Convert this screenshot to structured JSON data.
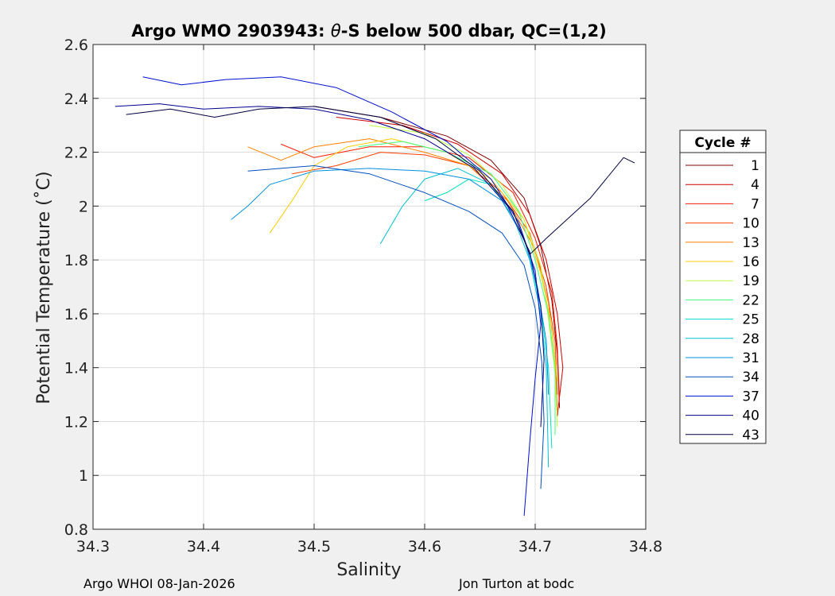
{
  "chart_data": {
    "type": "line",
    "title_prefix": "Argo WMO 2903943: ",
    "title_theta": "θ",
    "title_suffix": "-S below 500 dbar,  QC=(1,2)",
    "xlabel": "Salinity",
    "ylabel": "Potential Temperature (˚C)",
    "xlim": [
      34.3,
      34.8
    ],
    "ylim": [
      0.8,
      2.6
    ],
    "xticks": [
      "34.3",
      "34.4",
      "34.5",
      "34.6",
      "34.7",
      "34.8"
    ],
    "yticks": [
      "0.8",
      "1",
      "1.2",
      "1.4",
      "1.6",
      "1.8",
      "2",
      "2.2",
      "2.4",
      "2.6"
    ],
    "grid": true,
    "legend_title": "Cycle #",
    "legend_position": "right",
    "series": [
      {
        "name": "1",
        "color": "#800000",
        "values": [
          [
            34.5,
            2.37
          ],
          [
            34.56,
            2.33
          ],
          [
            34.62,
            2.26
          ],
          [
            34.66,
            2.17
          ],
          [
            34.69,
            2.03
          ],
          [
            34.705,
            1.85
          ],
          [
            34.715,
            1.65
          ],
          [
            34.72,
            1.45
          ],
          [
            34.722,
            1.25
          ]
        ]
      },
      {
        "name": "4",
        "color": "#cc0000",
        "values": [
          [
            34.52,
            2.33
          ],
          [
            34.58,
            2.3
          ],
          [
            34.63,
            2.23
          ],
          [
            34.67,
            2.12
          ],
          [
            34.695,
            1.97
          ],
          [
            34.71,
            1.8
          ],
          [
            34.72,
            1.6
          ],
          [
            34.725,
            1.4
          ],
          [
            34.72,
            1.22
          ]
        ]
      },
      {
        "name": "7",
        "color": "#ff1a00",
        "values": [
          [
            34.47,
            2.23
          ],
          [
            34.5,
            2.18
          ],
          [
            34.55,
            2.22
          ],
          [
            34.6,
            2.22
          ],
          [
            34.64,
            2.18
          ],
          [
            34.68,
            2.05
          ],
          [
            34.7,
            1.88
          ],
          [
            34.715,
            1.68
          ],
          [
            34.72,
            1.48
          ],
          [
            34.722,
            1.28
          ]
        ]
      },
      {
        "name": "10",
        "color": "#ff4000",
        "values": [
          [
            34.48,
            2.12
          ],
          [
            34.52,
            2.15
          ],
          [
            34.56,
            2.2
          ],
          [
            34.6,
            2.19
          ],
          [
            34.64,
            2.15
          ],
          [
            34.67,
            2.05
          ],
          [
            34.695,
            1.9
          ],
          [
            34.71,
            1.7
          ],
          [
            34.718,
            1.5
          ],
          [
            34.72,
            1.3
          ]
        ]
      },
      {
        "name": "13",
        "color": "#ff8000",
        "values": [
          [
            34.44,
            2.22
          ],
          [
            34.47,
            2.17
          ],
          [
            34.5,
            2.22
          ],
          [
            34.55,
            2.25
          ],
          [
            34.6,
            2.2
          ],
          [
            34.64,
            2.15
          ],
          [
            34.675,
            2.02
          ],
          [
            34.7,
            1.84
          ],
          [
            34.712,
            1.64
          ],
          [
            34.718,
            1.44
          ],
          [
            34.72,
            1.24
          ]
        ]
      },
      {
        "name": "16",
        "color": "#ffcc00",
        "values": [
          [
            34.46,
            1.9
          ],
          [
            34.48,
            2.02
          ],
          [
            34.5,
            2.15
          ],
          [
            34.53,
            2.22
          ],
          [
            34.57,
            2.25
          ],
          [
            34.62,
            2.2
          ],
          [
            34.66,
            2.1
          ],
          [
            34.69,
            1.95
          ],
          [
            34.705,
            1.75
          ],
          [
            34.715,
            1.55
          ],
          [
            34.72,
            1.35
          ]
        ]
      },
      {
        "name": "19",
        "color": "#bfff40",
        "values": [
          [
            34.55,
            2.3
          ],
          [
            34.6,
            2.27
          ],
          [
            34.64,
            2.19
          ],
          [
            34.67,
            2.08
          ],
          [
            34.69,
            1.95
          ],
          [
            34.705,
            1.78
          ],
          [
            34.712,
            1.58
          ],
          [
            34.718,
            1.38
          ],
          [
            34.72,
            1.18
          ]
        ]
      },
      {
        "name": "22",
        "color": "#40ff80",
        "values": [
          [
            34.54,
            2.22
          ],
          [
            34.58,
            2.24
          ],
          [
            34.62,
            2.2
          ],
          [
            34.66,
            2.12
          ],
          [
            34.685,
            1.98
          ],
          [
            34.7,
            1.8
          ],
          [
            34.712,
            1.6
          ],
          [
            34.718,
            1.4
          ],
          [
            34.718,
            1.15
          ]
        ]
      },
      {
        "name": "25",
        "color": "#00e0c0",
        "values": [
          [
            34.6,
            2.02
          ],
          [
            34.62,
            2.05
          ],
          [
            34.64,
            2.1
          ],
          [
            34.66,
            2.08
          ],
          [
            34.68,
            1.98
          ],
          [
            34.695,
            1.82
          ],
          [
            34.705,
            1.62
          ],
          [
            34.712,
            1.4
          ],
          [
            34.715,
            1.1
          ]
        ]
      },
      {
        "name": "28",
        "color": "#00c0d0",
        "values": [
          [
            34.56,
            1.86
          ],
          [
            34.58,
            2.0
          ],
          [
            34.6,
            2.1
          ],
          [
            34.63,
            2.14
          ],
          [
            34.66,
            2.08
          ],
          [
            34.68,
            1.96
          ],
          [
            34.695,
            1.8
          ],
          [
            34.705,
            1.6
          ],
          [
            34.71,
            1.4
          ],
          [
            34.712,
            1.03
          ]
        ]
      },
      {
        "name": "31",
        "color": "#0090e0",
        "values": [
          [
            34.425,
            1.95
          ],
          [
            34.44,
            2.0
          ],
          [
            34.46,
            2.08
          ],
          [
            34.5,
            2.13
          ],
          [
            34.55,
            2.14
          ],
          [
            34.6,
            2.13
          ],
          [
            34.64,
            2.1
          ],
          [
            34.67,
            2.02
          ],
          [
            34.69,
            1.88
          ],
          [
            34.702,
            1.7
          ],
          [
            34.71,
            1.5
          ],
          [
            34.712,
            1.3
          ]
        ]
      },
      {
        "name": "34",
        "color": "#0050c0",
        "values": [
          [
            34.44,
            2.13
          ],
          [
            34.5,
            2.15
          ],
          [
            34.55,
            2.12
          ],
          [
            34.6,
            2.05
          ],
          [
            34.64,
            1.98
          ],
          [
            34.67,
            1.9
          ],
          [
            34.69,
            1.78
          ],
          [
            34.7,
            1.62
          ],
          [
            34.706,
            1.42
          ],
          [
            34.708,
            1.2
          ],
          [
            34.705,
            0.95
          ]
        ]
      },
      {
        "name": "37",
        "color": "#0010d0",
        "values": [
          [
            34.345,
            2.48
          ],
          [
            34.38,
            2.45
          ],
          [
            34.42,
            2.47
          ],
          [
            34.47,
            2.48
          ],
          [
            34.52,
            2.44
          ],
          [
            34.57,
            2.35
          ],
          [
            34.62,
            2.24
          ],
          [
            34.66,
            2.1
          ],
          [
            34.685,
            1.94
          ],
          [
            34.7,
            1.76
          ],
          [
            34.705,
            1.56
          ],
          [
            34.7,
            1.36
          ],
          [
            34.695,
            1.12
          ],
          [
            34.69,
            0.85
          ]
        ]
      },
      {
        "name": "40",
        "color": "#000090",
        "values": [
          [
            34.32,
            2.37
          ],
          [
            34.36,
            2.38
          ],
          [
            34.4,
            2.36
          ],
          [
            34.45,
            2.37
          ],
          [
            34.5,
            2.36
          ],
          [
            34.55,
            2.32
          ],
          [
            34.6,
            2.25
          ],
          [
            34.645,
            2.14
          ],
          [
            34.675,
            2.0
          ],
          [
            34.695,
            1.83
          ],
          [
            34.705,
            1.63
          ],
          [
            34.708,
            1.43
          ],
          [
            34.705,
            1.18
          ]
        ]
      },
      {
        "name": "43",
        "color": "#000040",
        "values": [
          [
            34.33,
            2.34
          ],
          [
            34.37,
            2.36
          ],
          [
            34.41,
            2.33
          ],
          [
            34.45,
            2.36
          ],
          [
            34.5,
            2.37
          ],
          [
            34.56,
            2.33
          ],
          [
            34.61,
            2.25
          ],
          [
            34.65,
            2.13
          ],
          [
            34.68,
            1.98
          ],
          [
            34.695,
            1.82
          ],
          [
            34.71,
            1.88
          ],
          [
            34.75,
            2.03
          ],
          [
            34.78,
            2.18
          ],
          [
            34.79,
            2.16
          ]
        ]
      }
    ]
  },
  "footer": {
    "left": "Argo WHOI 08-Jan-2026",
    "right": "Jon Turton at bodc"
  }
}
